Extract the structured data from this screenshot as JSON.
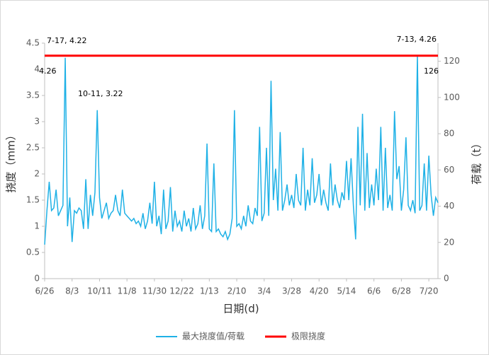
{
  "chart_data": {
    "type": "line",
    "x_label": "日期(d)",
    "y_label": "挠度（mm）",
    "y2_label": "荷载（t）",
    "categories": [
      "6/26",
      null,
      null,
      null,
      null,
      null,
      null,
      null,
      null,
      null,
      null,
      null,
      "8/3",
      null,
      null,
      null,
      null,
      null,
      null,
      null,
      null,
      null,
      null,
      null,
      "10/11",
      null,
      null,
      null,
      null,
      null,
      null,
      null,
      null,
      null,
      null,
      null,
      "11/8",
      null,
      null,
      null,
      null,
      null,
      null,
      null,
      null,
      null,
      null,
      null,
      "11/30",
      null,
      null,
      null,
      null,
      null,
      null,
      null,
      null,
      null,
      null,
      null,
      "12/22",
      null,
      null,
      null,
      null,
      null,
      null,
      null,
      null,
      null,
      null,
      null,
      "1/13",
      null,
      null,
      null,
      null,
      null,
      null,
      null,
      null,
      null,
      null,
      null,
      "2/10",
      null,
      null,
      null,
      null,
      null,
      null,
      null,
      null,
      null,
      null,
      null,
      "3/4",
      null,
      null,
      null,
      null,
      null,
      null,
      null,
      null,
      null,
      null,
      null,
      "3/28",
      null,
      null,
      null,
      null,
      null,
      null,
      null,
      null,
      null,
      null,
      null,
      "4/20",
      null,
      null,
      null,
      null,
      null,
      null,
      null,
      null,
      null,
      null,
      null,
      "5/14",
      null,
      null,
      null,
      null,
      null,
      null,
      null,
      null,
      null,
      null,
      null,
      "6/6",
      null,
      null,
      null,
      null,
      null,
      null,
      null,
      null,
      null,
      null,
      null,
      "6/28",
      null,
      null,
      null,
      null,
      null,
      null,
      null,
      null,
      null,
      null,
      null,
      "7/20",
      null,
      null,
      null,
      null
    ],
    "series": [
      {
        "name": "最大挠度值/荷载",
        "color": "#1fb1e6",
        "values": [
          0.65,
          1.3,
          1.85,
          1.3,
          1.35,
          1.7,
          1.2,
          1.3,
          1.4,
          4.22,
          1.0,
          1.55,
          0.7,
          1.3,
          1.25,
          1.35,
          1.3,
          0.95,
          1.9,
          0.95,
          1.6,
          1.2,
          1.65,
          3.22,
          1.55,
          1.15,
          1.3,
          1.45,
          1.15,
          1.25,
          1.3,
          1.6,
          1.3,
          1.2,
          1.7,
          1.25,
          1.2,
          1.15,
          1.1,
          1.15,
          1.05,
          1.1,
          1.0,
          1.25,
          0.95,
          1.1,
          1.45,
          1.05,
          1.85,
          1.0,
          1.2,
          0.85,
          1.7,
          0.95,
          1.1,
          1.75,
          0.9,
          1.3,
          1.0,
          1.1,
          0.9,
          1.3,
          1.0,
          1.15,
          0.9,
          1.35,
          0.95,
          1.05,
          1.4,
          0.95,
          1.2,
          2.58,
          0.95,
          0.9,
          2.2,
          0.9,
          0.95,
          0.85,
          0.8,
          0.9,
          0.75,
          0.85,
          1.15,
          3.22,
          1.0,
          1.05,
          0.95,
          1.2,
          1.0,
          1.4,
          1.1,
          1.05,
          1.35,
          1.2,
          2.9,
          1.1,
          1.25,
          2.5,
          1.2,
          3.78,
          1.5,
          2.1,
          1.3,
          2.8,
          1.3,
          1.5,
          1.8,
          1.4,
          1.6,
          1.35,
          2.0,
          1.5,
          1.4,
          2.5,
          1.3,
          1.7,
          1.4,
          2.3,
          1.45,
          1.6,
          2.0,
          1.4,
          1.7,
          1.45,
          1.3,
          2.2,
          1.4,
          1.8,
          1.5,
          1.35,
          1.65,
          1.5,
          2.25,
          1.5,
          2.3,
          1.4,
          0.75,
          2.9,
          1.4,
          3.15,
          1.3,
          2.4,
          1.35,
          1.8,
          1.4,
          2.1,
          1.5,
          2.9,
          1.3,
          2.5,
          1.35,
          1.6,
          1.3,
          3.2,
          1.9,
          2.15,
          1.3,
          1.7,
          2.7,
          1.4,
          1.3,
          1.5,
          1.25,
          4.26,
          1.3,
          1.4,
          2.2,
          1.3,
          2.35,
          1.6,
          1.2,
          1.55,
          1.45
        ]
      }
    ],
    "limit_line": {
      "name": "极限挠度",
      "color": "#ff0000",
      "value": 4.26
    },
    "annotations": [
      "7-17, 4.22",
      "4.26",
      "10-11, 3.22",
      "7-13, 4.26",
      "126"
    ],
    "ylim": [
      0,
      4.5
    ],
    "yticks": [
      0,
      0.5,
      1,
      1.5,
      2,
      2.5,
      3,
      3.5,
      4,
      4.5
    ],
    "y2lim": [
      0,
      130
    ],
    "y2ticks": [
      0,
      20,
      40,
      60,
      80,
      100,
      120
    ]
  }
}
